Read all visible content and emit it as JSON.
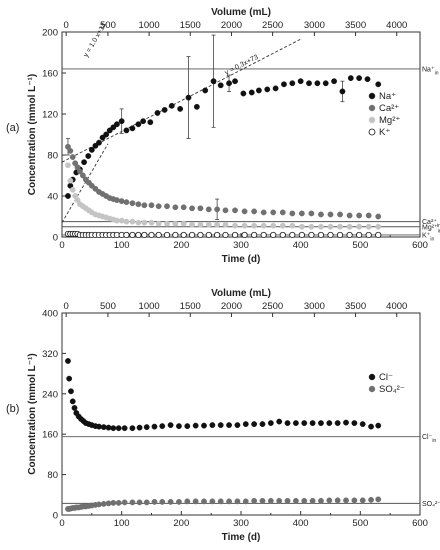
{
  "chart_data": [
    {
      "panel_label": "(a)",
      "type": "scatter",
      "xlabel": "Time (d)",
      "ylabel": "Concentration (mmol L⁻¹)",
      "top_xlabel": "Volume (mL)",
      "xlim": [
        0,
        600
      ],
      "ylim": [
        0,
        200
      ],
      "xticks": [
        0,
        100,
        200,
        300,
        400,
        500,
        600
      ],
      "yticks": [
        0,
        40,
        80,
        120,
        160,
        200
      ],
      "top_ticks": [
        {
          "label": "0",
          "x": 7
        },
        {
          "label": "500",
          "x": 77
        },
        {
          "label": "1000",
          "x": 146
        },
        {
          "label": "1500",
          "x": 215
        },
        {
          "label": "2000",
          "x": 284
        },
        {
          "label": "2500",
          "x": 353
        },
        {
          "label": "3000",
          "x": 423
        },
        {
          "label": "3500",
          "x": 492
        },
        {
          "label": "4000",
          "x": 561
        }
      ],
      "legend": {
        "position": "right",
        "entries": [
          {
            "name": "Na⁺",
            "color": "#111111",
            "filled": true
          },
          {
            "name": "Ca²⁺",
            "color": "#707070",
            "filled": true
          },
          {
            "name": "Mg²⁺",
            "color": "#c4c4c4",
            "filled": true
          },
          {
            "name": "K⁺",
            "color": "#111111",
            "filled": false
          }
        ]
      },
      "hlines": [
        {
          "y": 164,
          "label": "Na⁺",
          "sub": "in",
          "color": "#555555"
        },
        {
          "y": 15,
          "label": "Ca²⁺",
          "sub": "in",
          "color": "#555555"
        },
        {
          "y": 10,
          "label": "Mg²⁺",
          "sub": "in",
          "color": "#555555"
        },
        {
          "y": 2,
          "label": "K⁺",
          "sub": "in",
          "color": "#555555"
        }
      ],
      "fit_lines": [
        {
          "label": "y = 1.0 x+14",
          "slope": 1.0,
          "intercept": 14,
          "x_range": [
            0,
            77
          ],
          "label_x": 42,
          "label_y": 175
        },
        {
          "label": "y = 0.3x+73",
          "slope": 0.3,
          "intercept": 73,
          "x_range": [
            0,
            400
          ],
          "label_x": 275,
          "label_y": 158
        }
      ],
      "series": [
        {
          "name": "Na⁺",
          "color": "#111111",
          "filled": true,
          "x": [
            10,
            14,
            18,
            24,
            30,
            37,
            44,
            50,
            56,
            62,
            68,
            74,
            80,
            86,
            92,
            100,
            108,
            118,
            128,
            136,
            148,
            160,
            172,
            184,
            198,
            212,
            226,
            240,
            254,
            266,
            280,
            290,
            304,
            318,
            330,
            344,
            358,
            372,
            386,
            400,
            414,
            428,
            442,
            456,
            470,
            484,
            498,
            512,
            530
          ],
          "y": [
            40,
            50,
            56,
            63,
            66,
            73,
            79,
            85,
            89,
            92,
            97,
            100,
            104,
            107,
            110,
            113,
            104,
            106,
            110,
            113,
            112,
            121,
            124,
            128,
            125,
            136,
            127,
            143,
            152,
            148,
            150,
            152,
            140,
            141,
            143,
            144,
            145,
            149,
            150,
            152,
            150,
            150,
            150,
            152,
            142,
            155,
            155,
            154,
            149
          ],
          "err": [
            null,
            null,
            null,
            null,
            null,
            null,
            null,
            null,
            null,
            null,
            null,
            null,
            null,
            null,
            null,
            12,
            null,
            null,
            null,
            null,
            null,
            null,
            null,
            null,
            null,
            40,
            null,
            null,
            45,
            null,
            8,
            null,
            null,
            null,
            null,
            null,
            null,
            null,
            null,
            null,
            null,
            null,
            null,
            null,
            10,
            null,
            null,
            null,
            null
          ]
        },
        {
          "name": "Ca²⁺",
          "color": "#707070",
          "filled": true,
          "x": [
            10,
            14,
            18,
            22,
            26,
            30,
            35,
            40,
            45,
            50,
            56,
            62,
            68,
            74,
            80,
            86,
            92,
            100,
            108,
            118,
            128,
            138,
            150,
            162,
            176,
            190,
            204,
            218,
            232,
            246,
            260,
            274,
            290,
            306,
            322,
            338,
            354,
            370,
            386,
            402,
            418,
            434,
            450,
            466,
            482,
            498,
            514,
            530
          ],
          "y": [
            88,
            84,
            78,
            72,
            68,
            64,
            60,
            56,
            53,
            50,
            47,
            44,
            42,
            40,
            38,
            37,
            36,
            35,
            34,
            33,
            32,
            31,
            31,
            30,
            30,
            29,
            29,
            28,
            28,
            27,
            27,
            26,
            26,
            25,
            25,
            24,
            24,
            24,
            23,
            23,
            23,
            22,
            22,
            22,
            21,
            21,
            21,
            20
          ],
          "err": [
            8,
            null,
            null,
            null,
            null,
            null,
            null,
            null,
            null,
            null,
            null,
            null,
            null,
            null,
            null,
            null,
            null,
            null,
            null,
            null,
            null,
            null,
            null,
            null,
            null,
            null,
            null,
            null,
            null,
            null,
            10,
            null,
            null,
            null,
            null,
            null,
            null,
            null,
            null,
            null,
            null,
            null,
            null,
            null,
            null,
            null,
            null,
            null
          ]
        },
        {
          "name": "Mg²⁺",
          "color": "#c4c4c4",
          "filled": true,
          "x": [
            10,
            14,
            18,
            22,
            26,
            30,
            35,
            40,
            45,
            50,
            56,
            62,
            68,
            74,
            80,
            86,
            92,
            100,
            108,
            118,
            128,
            138,
            150,
            162,
            176,
            190,
            204,
            218,
            232,
            246,
            260,
            274,
            290,
            306,
            322,
            338,
            354,
            370,
            386,
            402,
            418,
            434,
            450,
            466,
            482,
            498,
            514,
            530
          ],
          "y": [
            70,
            55,
            46,
            40,
            36,
            32,
            30,
            28,
            26,
            24,
            22,
            21,
            20,
            19,
            18,
            17,
            16,
            16,
            15,
            15,
            14,
            14,
            14,
            13,
            13,
            13,
            13,
            12,
            12,
            12,
            12,
            12,
            11,
            11,
            11,
            11,
            11,
            11,
            11,
            10,
            10,
            10,
            10,
            10,
            10,
            10,
            10,
            10
          ],
          "err": [
            null,
            null,
            null,
            null,
            null,
            null,
            null,
            null,
            null,
            null,
            null,
            null,
            null,
            null,
            null,
            null,
            null,
            null,
            null,
            null,
            null,
            null,
            null,
            null,
            null,
            null,
            null,
            null,
            null,
            null,
            null,
            null,
            null,
            null,
            null,
            null,
            null,
            null,
            null,
            null,
            null,
            null,
            null,
            null,
            null,
            null,
            null,
            null
          ]
        },
        {
          "name": "K⁺",
          "color": "#111111",
          "filled": false,
          "x": [
            10,
            14,
            18,
            22,
            26,
            30,
            35,
            40,
            45,
            50,
            56,
            62,
            68,
            74,
            80,
            86,
            92,
            100,
            108,
            118,
            128,
            138,
            150,
            162,
            176,
            190,
            204,
            218,
            232,
            246,
            260,
            274,
            290,
            306,
            322,
            338,
            354,
            370,
            386,
            402,
            418,
            434,
            450,
            466,
            482,
            498,
            514,
            530
          ],
          "y": [
            3,
            3,
            3,
            3,
            3,
            2,
            2,
            2,
            2,
            2,
            2,
            2,
            2,
            2,
            2,
            2,
            2,
            2,
            2,
            2,
            2,
            2,
            2,
            2,
            2,
            2,
            2,
            2,
            2,
            2,
            2,
            2,
            2,
            2,
            2,
            2,
            2,
            2,
            2,
            2,
            2,
            2,
            2,
            2,
            2,
            2,
            2,
            2
          ],
          "err": [
            null,
            null,
            null,
            null,
            null,
            null,
            null,
            null,
            null,
            null,
            null,
            null,
            null,
            null,
            null,
            null,
            null,
            null,
            null,
            null,
            null,
            null,
            null,
            null,
            null,
            null,
            null,
            null,
            null,
            null,
            null,
            null,
            null,
            null,
            null,
            null,
            null,
            null,
            null,
            null,
            null,
            null,
            null,
            null,
            null,
            null,
            null,
            null
          ]
        }
      ]
    },
    {
      "panel_label": "(b)",
      "type": "scatter",
      "xlabel": "Time (d)",
      "ylabel": "Concentration (mmol L⁻¹)",
      "top_xlabel": "Volume (mL)",
      "xlim": [
        0,
        600
      ],
      "ylim": [
        0,
        400
      ],
      "xticks": [
        0,
        100,
        200,
        300,
        400,
        500,
        600
      ],
      "yticks": [
        0,
        80,
        160,
        240,
        320,
        400
      ],
      "top_ticks": [
        {
          "label": "0",
          "x": 7
        },
        {
          "label": "500",
          "x": 77
        },
        {
          "label": "1000",
          "x": 146
        },
        {
          "label": "1500",
          "x": 215
        },
        {
          "label": "2000",
          "x": 284
        },
        {
          "label": "2500",
          "x": 353
        },
        {
          "label": "3000",
          "x": 423
        },
        {
          "label": "3500",
          "x": 492
        },
        {
          "label": "4000",
          "x": 561
        }
      ],
      "legend": {
        "position": "right",
        "entries": [
          {
            "name": "Cl⁻",
            "color": "#111111",
            "filled": true
          },
          {
            "name": "SO₄²⁻",
            "color": "#707070",
            "filled": true
          }
        ]
      },
      "hlines": [
        {
          "y": 155,
          "label": "Cl⁻",
          "sub": "in",
          "color": "#555555"
        },
        {
          "y": 23,
          "label": "SO₄²⁻",
          "sub": "in",
          "color": "#555555"
        }
      ],
      "fit_lines": [],
      "series": [
        {
          "name": "Cl⁻",
          "color": "#111111",
          "filled": true,
          "x": [
            10,
            12,
            15,
            18,
            21,
            24,
            28,
            32,
            36,
            40,
            45,
            50,
            56,
            62,
            70,
            78,
            86,
            95,
            105,
            118,
            130,
            142,
            155,
            168,
            182,
            196,
            210,
            224,
            238,
            252,
            266,
            280,
            294,
            308,
            322,
            336,
            350,
            364,
            378,
            392,
            406,
            420,
            434,
            448,
            462,
            476,
            490,
            504,
            518,
            530
          ],
          "y": [
            305,
            270,
            245,
            225,
            212,
            202,
            195,
            190,
            186,
            182,
            180,
            178,
            176,
            175,
            174,
            173,
            172,
            172,
            172,
            172,
            173,
            174,
            175,
            176,
            178,
            176,
            176,
            177,
            177,
            178,
            178,
            178,
            178,
            180,
            180,
            180,
            182,
            185,
            182,
            182,
            182,
            182,
            182,
            182,
            182,
            183,
            182,
            180,
            175,
            177
          ],
          "err": []
        },
        {
          "name": "SO₄²⁻",
          "color": "#707070",
          "filled": true,
          "x": [
            10,
            12,
            15,
            18,
            21,
            24,
            28,
            32,
            36,
            40,
            45,
            50,
            56,
            62,
            70,
            78,
            86,
            95,
            105,
            118,
            130,
            142,
            155,
            168,
            182,
            196,
            210,
            224,
            238,
            252,
            266,
            280,
            294,
            308,
            322,
            336,
            350,
            364,
            378,
            392,
            406,
            420,
            434,
            448,
            462,
            476,
            490,
            504,
            518,
            530
          ],
          "y": [
            12,
            12,
            13,
            14,
            14,
            15,
            15,
            16,
            17,
            17,
            18,
            19,
            20,
            21,
            22,
            23,
            24,
            24,
            25,
            25,
            25,
            25,
            26,
            26,
            26,
            26,
            27,
            27,
            27,
            27,
            27,
            27,
            27,
            27,
            28,
            28,
            28,
            28,
            28,
            28,
            28,
            28,
            28,
            29,
            29,
            29,
            29,
            29,
            30,
            31
          ],
          "err": []
        }
      ]
    }
  ]
}
